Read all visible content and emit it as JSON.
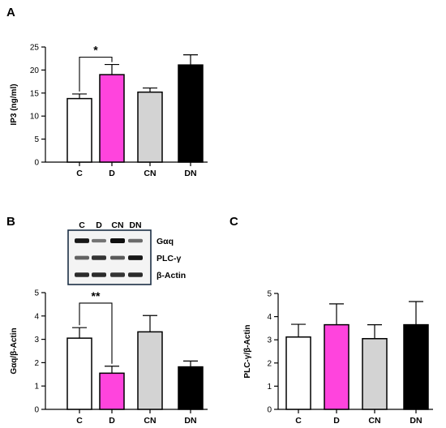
{
  "chart_data": [
    {
      "panel": "A",
      "type": "bar",
      "categories": [
        "C",
        "D",
        "CN",
        "DN"
      ],
      "values": [
        13.8,
        19.0,
        15.2,
        21.1
      ],
      "errors": [
        1.0,
        2.2,
        0.9,
        2.2
      ],
      "colors": [
        "#ffffff",
        "#ff44dd",
        "#d3d3d3",
        "#000000"
      ],
      "ylabel": "IP3 (ng/ml)",
      "ylim": [
        0,
        25
      ],
      "yticks": [
        0,
        5,
        10,
        15,
        20,
        25
      ],
      "significance": [
        {
          "from": "C",
          "to": "D",
          "label": "*"
        }
      ]
    },
    {
      "panel": "B",
      "type": "bar",
      "categories": [
        "C",
        "D",
        "CN",
        "DN"
      ],
      "values": [
        3.05,
        1.55,
        3.32,
        1.82
      ],
      "errors": [
        0.45,
        0.3,
        0.7,
        0.25
      ],
      "colors": [
        "#ffffff",
        "#ff44dd",
        "#d3d3d3",
        "#000000"
      ],
      "ylabel": "Gαq/β-Actin",
      "ylim": [
        0,
        5
      ],
      "yticks": [
        0,
        1,
        2,
        3,
        4,
        5
      ],
      "significance": [
        {
          "from": "C",
          "to": "D",
          "label": "**"
        }
      ]
    },
    {
      "panel": "C",
      "type": "bar",
      "categories": [
        "C",
        "D",
        "CN",
        "DN"
      ],
      "values": [
        3.12,
        3.65,
        3.05,
        3.65
      ],
      "errors": [
        0.55,
        0.9,
        0.6,
        1.0
      ],
      "colors": [
        "#ffffff",
        "#ff44dd",
        "#d3d3d3",
        "#000000"
      ],
      "ylabel": "PLC-γ/β-Actin",
      "ylim": [
        0,
        5
      ],
      "yticks": [
        0,
        1,
        2,
        3,
        4,
        5
      ],
      "significance": []
    }
  ],
  "blot": {
    "lanes": [
      "C",
      "D",
      "CN",
      "DN"
    ],
    "rows": [
      {
        "label": "Gαq",
        "intensity": [
          0.95,
          0.45,
          1.0,
          0.5
        ]
      },
      {
        "label": "PLC-γ",
        "intensity": [
          0.55,
          0.8,
          0.6,
          0.95
        ]
      },
      {
        "label": "β-Actin",
        "intensity": [
          0.85,
          0.85,
          0.8,
          0.85
        ]
      }
    ]
  }
}
